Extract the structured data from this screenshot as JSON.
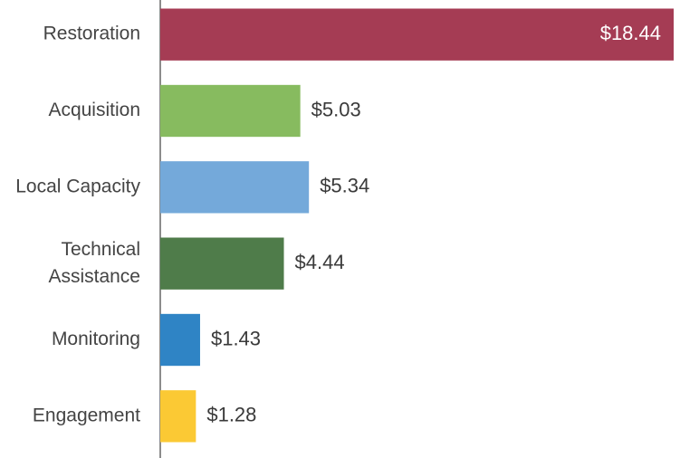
{
  "chart_data": {
    "type": "bar",
    "orientation": "horizontal",
    "categories": [
      "Restoration",
      "Acquisition",
      "Local Capacity",
      "Technical Assistance",
      "Monitoring",
      "Engagement"
    ],
    "values": [
      18.44,
      5.03,
      5.34,
      4.44,
      1.43,
      1.28
    ],
    "value_labels": [
      "$18.44",
      "$5.03",
      "$5.34",
      "$4.44",
      "$1.43",
      "$1.28"
    ],
    "colors": [
      "#a53c54",
      "#87bb5f",
      "#74a9da",
      "#4f7c4a",
      "#2f84c5",
      "#fbc934"
    ]
  }
}
